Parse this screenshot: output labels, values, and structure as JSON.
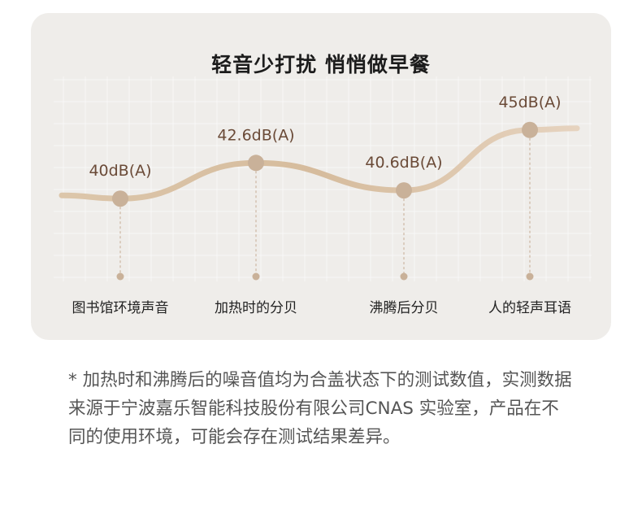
{
  "chart_data": {
    "type": "line",
    "title": "轻音少打扰 悄悄做早餐",
    "categories": [
      "图书馆环境声音",
      "加热时的分贝",
      "沸腾后分贝",
      "人的轻声耳语"
    ],
    "values": [
      40,
      42.6,
      40.6,
      45
    ],
    "value_labels": [
      "40dB(A)",
      "42.6dB(A)",
      "40.6dB(A)",
      "45dB(A)"
    ],
    "unit": "dB(A)",
    "grid": true,
    "ylim": [
      38,
      47
    ]
  },
  "footnote": "* 加热时和沸腾后的噪音值均为合盖状态下的测试数值，实测数据来源于宁波嘉乐智能科技股份有限公司CNAS 实验室，产品在不同的使用环境，可能会存在测试结果差异。",
  "colors": {
    "card_bg": "#efedea",
    "curve": "#d8c2a6",
    "marker": "#c9b199",
    "value_text": "#6a4a37",
    "category_text": "#222222",
    "note_text": "#555555"
  }
}
